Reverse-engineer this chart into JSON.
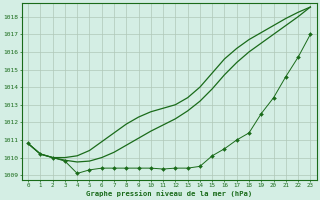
{
  "x": [
    0,
    1,
    2,
    3,
    4,
    5,
    6,
    7,
    8,
    9,
    10,
    11,
    12,
    13,
    14,
    15,
    16,
    17,
    18,
    19,
    20,
    21,
    22,
    23
  ],
  "line_marked": [
    1010.8,
    1010.2,
    1010.0,
    1009.8,
    1009.1,
    1009.3,
    1009.4,
    1009.4,
    1009.4,
    1009.4,
    1009.4,
    1009.35,
    1009.4,
    1009.4,
    1009.5,
    1010.1,
    1010.5,
    1011.0,
    1011.4,
    1012.5,
    1013.4,
    1014.6,
    1015.7,
    1017.0
  ],
  "line_smooth1": [
    1010.8,
    1010.2,
    1010.0,
    1010.0,
    1010.1,
    1010.4,
    1010.9,
    1011.4,
    1011.9,
    1012.3,
    1012.6,
    1012.8,
    1013.0,
    1013.4,
    1014.0,
    1014.8,
    1015.6,
    1016.2,
    1016.7,
    1017.1,
    1017.5,
    1017.9,
    1018.25,
    1018.55
  ],
  "line_smooth2": [
    1010.8,
    1010.2,
    1010.0,
    1009.85,
    1009.75,
    1009.8,
    1010.0,
    1010.3,
    1010.7,
    1011.1,
    1011.5,
    1011.85,
    1012.2,
    1012.65,
    1013.2,
    1013.9,
    1014.7,
    1015.4,
    1016.0,
    1016.5,
    1017.0,
    1017.5,
    1018.0,
    1018.55
  ],
  "line_color": "#1a6b1a",
  "bg_color": "#d4eee4",
  "grid_color": "#b0c8b8",
  "xlabel": "Graphe pression niveau de la mer (hPa)",
  "ylim": [
    1008.7,
    1018.75
  ],
  "xlim": [
    -0.5,
    23.5
  ],
  "yticks": [
    1009,
    1010,
    1011,
    1012,
    1013,
    1014,
    1015,
    1016,
    1017,
    1018
  ]
}
